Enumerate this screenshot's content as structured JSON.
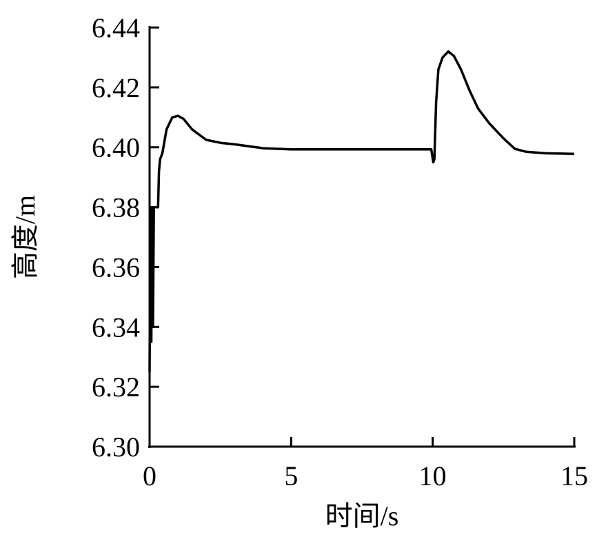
{
  "chart_data": {
    "type": "line",
    "title": "",
    "xlabel": "时间/s",
    "ylabel": "高度/m",
    "xlim": [
      0,
      15
    ],
    "ylim": [
      6.3,
      6.44
    ],
    "xticks": [
      "0",
      "5",
      "10",
      "15"
    ],
    "yticks": [
      "6.30",
      "6.32",
      "6.34",
      "6.36",
      "6.38",
      "6.40",
      "6.42",
      "6.44"
    ],
    "grid": false,
    "line_color": "#000000",
    "series": [
      {
        "x": [
          0.0,
          0.03,
          0.06,
          0.09,
          0.12,
          0.15,
          0.2,
          0.25,
          0.3,
          0.33,
          0.37,
          0.45,
          0.6,
          0.8,
          1.0,
          1.2,
          1.5,
          2.0,
          2.5,
          3.0,
          4.0,
          5.0,
          7.0,
          9.0,
          9.95,
          10.02,
          10.06,
          10.12,
          10.2,
          10.35,
          10.55,
          10.75,
          11.0,
          11.3,
          11.6,
          12.0,
          12.5,
          12.9,
          13.3,
          14.0,
          15.0
        ],
        "y": [
          6.325,
          6.38,
          6.335,
          6.38,
          6.34,
          6.38,
          6.38,
          6.38,
          6.38,
          6.392,
          6.396,
          6.398,
          6.406,
          6.41,
          6.4105,
          6.4095,
          6.406,
          6.4025,
          6.4015,
          6.401,
          6.3997,
          6.3993,
          6.3993,
          6.3993,
          6.3993,
          6.395,
          6.396,
          6.415,
          6.426,
          6.43,
          6.432,
          6.4305,
          6.426,
          6.419,
          6.413,
          6.408,
          6.403,
          6.3995,
          6.3985,
          6.398,
          6.3978
        ]
      }
    ]
  }
}
